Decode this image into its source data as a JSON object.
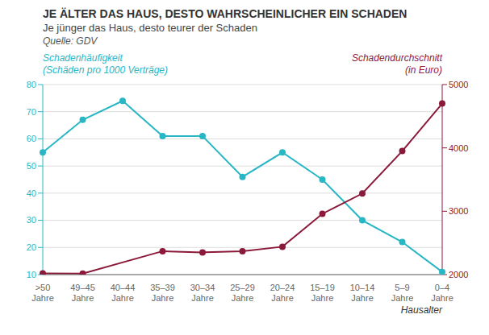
{
  "chart_data": {
    "type": "line",
    "title": "JE ÄLTER DAS HAUS, DESTO WAHRSCHEINLICHER EIN SCHADEN",
    "subtitle": "Je jünger das Haus, desto teurer der Schaden",
    "source": "Quelle: GDV",
    "xlabel": "Hausalter",
    "categories": [
      ">50\nJahre",
      "49–45\nJahre",
      "40–44\nJahre",
      "35–39\nJahre",
      "30–34\nJahre",
      "25–29\nJahre",
      "20–24\nJahre",
      "15–19\nJahre",
      "10–14\nJahre",
      "5–9\nJahre",
      "0–4\nJahre"
    ],
    "series": [
      {
        "color": "#29B6C5",
        "marker": "circle",
        "values": [
          55,
          67,
          74,
          61,
          61,
          46,
          55,
          45,
          30,
          22,
          11
        ]
      },
      {
        "color": "#8B1A3A",
        "marker": "circle",
        "axis": "y2",
        "values": [
          2020,
          2015,
          null,
          2370,
          2350,
          2370,
          2440,
          2960,
          3280,
          3950,
          4700
        ]
      }
    ],
    "annotations": [
      "Schadenhäufigkeit",
      "(Schäden pro 1000 Verträge)",
      "Schadendurchschnitt",
      "(in Euro)"
    ],
    "ylim": [
      10,
      80
    ],
    "yticks": [
      10,
      20,
      30,
      40,
      50,
      60,
      70,
      80
    ],
    "y2lim": [
      2000,
      5000
    ],
    "y2ticks": [
      2000,
      3000,
      4000,
      5000
    ],
    "grid": true
  }
}
